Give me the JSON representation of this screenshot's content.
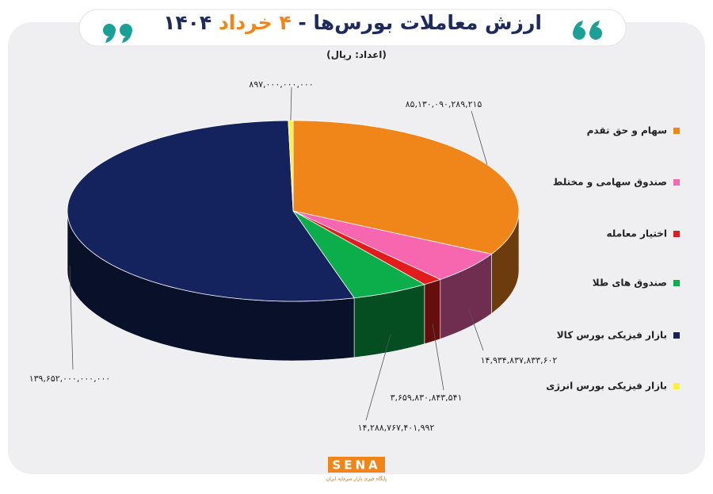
{
  "chart_data": {
    "type": "pie3d",
    "title": "ارزش معاملات بورس‌ها -",
    "title_highlight": "۴ خرداد",
    "title_year": "۱۴۰۴",
    "subtitle": "(اعداد: ریال)",
    "categories": [
      "سهام و حق تقدم",
      "صندوق سهامی و مختلط",
      "اختیار معامله",
      "صندوق های طلا",
      "بازار فیزیکی بورس کالا",
      "بازار فیزیکی بورس انرژی"
    ],
    "values": [
      85130090289215,
      14934837833602,
      3659830843541,
      14288767401992,
      139652000000000,
      897000000000
    ],
    "value_labels": [
      "۸۵,۱۳۰,۰۹۰,۲۸۹,۲۱۵",
      "۱۴,۹۳۴,۸۳۷,۸۳۳,۶۰۲",
      "۳,۶۵۹,۸۳۰,۸۴۳,۵۴۱",
      "۱۴,۲۸۸,۷۶۷,۴۰۱,۹۹۲",
      "۱۳۹,۶۵۲,۰۰۰,۰۰۰,۰۰۰",
      "۸۹۷,۰۰۰,۰۰۰,۰۰۰"
    ],
    "colors": [
      "#f0851a",
      "#f667b0",
      "#e21c1c",
      "#0cae4b",
      "#14235e",
      "#fff03a"
    ],
    "logo": "SENA",
    "logo_tagline": "پایگاه خبری بازار سرمایه ایران"
  }
}
